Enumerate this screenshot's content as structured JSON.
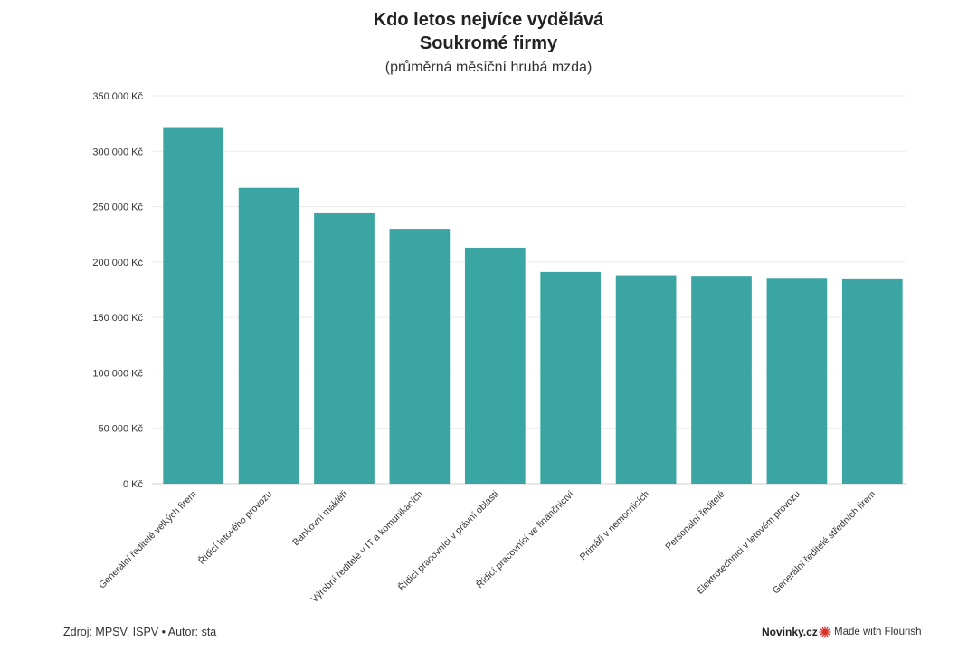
{
  "chart_data": {
    "type": "bar",
    "title_line1": "Kdo letos nejvíce vydělává",
    "title_line2": "Soukromé firmy",
    "subtitle": "(průměrná měsíční hrubá mzda)",
    "xlabel": "",
    "ylabel": "",
    "ylim": [
      0,
      350000
    ],
    "y_ticks": [
      0,
      50000,
      100000,
      150000,
      200000,
      250000,
      300000,
      350000
    ],
    "y_tick_labels": [
      "0 Kč",
      "50 000 Kč",
      "100 000 Kč",
      "150 000 Kč",
      "200 000 Kč",
      "250 000 Kč",
      "300 000 Kč",
      "350 000 Kč"
    ],
    "categories": [
      "Generální ředitelé velkých firem",
      "Řídicí letového provozu",
      "Bankovní makléři",
      "Výrobní ředitelé v IT a komunikacích",
      "Řídicí pracovníci v právní oblasti",
      "Řídicí pracovníci ve finančnictví",
      "Primáři v nemocnicích",
      "Personální ředitelé",
      "Elektrotechnici v letovém provozu",
      "Generální ředitelé středních firem"
    ],
    "values": [
      321000,
      267000,
      244000,
      230000,
      213000,
      191000,
      188000,
      187500,
      185000,
      184500
    ],
    "bar_color": "#3aa5a3",
    "grid": true
  },
  "footer": {
    "source": "Zdroj: MPSV, ISPV • Autor: sta",
    "brand": "Novinky.cz",
    "flourish": "Made with Flourish"
  },
  "colors": {
    "flourish_icon": "#d8322b"
  },
  "icons": {
    "flourish": "flourish-logo-icon"
  }
}
